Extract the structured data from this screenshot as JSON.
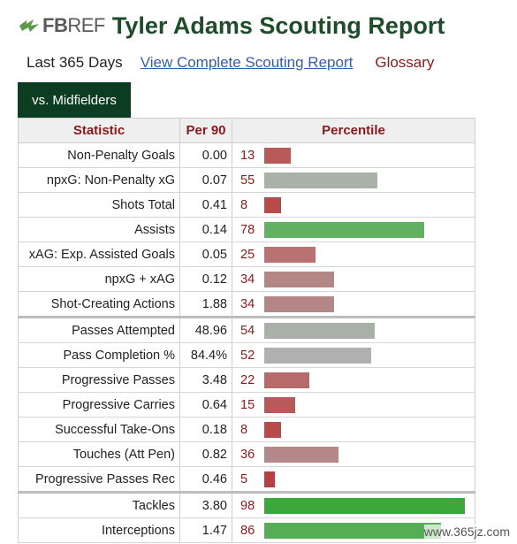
{
  "header": {
    "logo_fb": "FB",
    "logo_ref": "REF",
    "title": "Tyler Adams Scouting Report"
  },
  "subnav": {
    "period": "Last 365 Days",
    "full_report_link": "View Complete Scouting Report",
    "glossary_link": "Glossary"
  },
  "tab": {
    "label": "vs. Midfielders"
  },
  "table": {
    "columns": [
      "Statistic",
      "Per 90",
      "Percentile"
    ],
    "rows": [
      {
        "stat": "Non-Penalty Goals",
        "per90": "0.00",
        "pct": "13",
        "pct_value": 13,
        "color": "#b85a5a"
      },
      {
        "stat": "npxG: Non-Penalty xG",
        "per90": "0.07",
        "pct": "55",
        "pct_value": 55,
        "color": "#a8b2a8"
      },
      {
        "stat": "Shots Total",
        "per90": "0.41",
        "pct": "8",
        "pct_value": 8,
        "color": "#b84a4a"
      },
      {
        "stat": "Assists",
        "per90": "0.14",
        "pct": "78",
        "pct_value": 78,
        "color": "#62b062"
      },
      {
        "stat": "xAG: Exp. Assisted Goals",
        "per90": "0.05",
        "pct": "25",
        "pct_value": 25,
        "color": "#b87272"
      },
      {
        "stat": "npxG + xAG",
        "per90": "0.12",
        "pct": "34",
        "pct_value": 34,
        "color": "#b48686"
      },
      {
        "stat": "Shot-Creating Actions",
        "per90": "1.88",
        "pct": "34",
        "pct_value": 34,
        "color": "#b48686",
        "group_end": true
      },
      {
        "stat": "Passes Attempted",
        "per90": "48.96",
        "pct": "54",
        "pct_value": 54,
        "color": "#a8b0a8"
      },
      {
        "stat": "Pass Completion %",
        "per90": "84.4%",
        "pct": "52",
        "pct_value": 52,
        "color": "#b0b0b0"
      },
      {
        "stat": "Progressive Passes",
        "per90": "3.48",
        "pct": "22",
        "pct_value": 22,
        "color": "#b86a6a"
      },
      {
        "stat": "Progressive Carries",
        "per90": "0.64",
        "pct": "15",
        "pct_value": 15,
        "color": "#b85a5a"
      },
      {
        "stat": "Successful Take-Ons",
        "per90": "0.18",
        "pct": "8",
        "pct_value": 8,
        "color": "#b84a4a"
      },
      {
        "stat": "Touches (Att Pen)",
        "per90": "0.82",
        "pct": "36",
        "pct_value": 36,
        "color": "#b48888"
      },
      {
        "stat": "Progressive Passes Rec",
        "per90": "0.46",
        "pct": "5",
        "pct_value": 5,
        "color": "#b84040",
        "group_end": true
      },
      {
        "stat": "Tackles",
        "per90": "3.80",
        "pct": "98",
        "pct_value": 98,
        "color": "#3aa83a"
      },
      {
        "stat": "Interceptions",
        "per90": "1.47",
        "pct": "86",
        "pct_value": 86,
        "color": "#56ad56"
      }
    ]
  },
  "watermark": "www.365jz.com"
}
